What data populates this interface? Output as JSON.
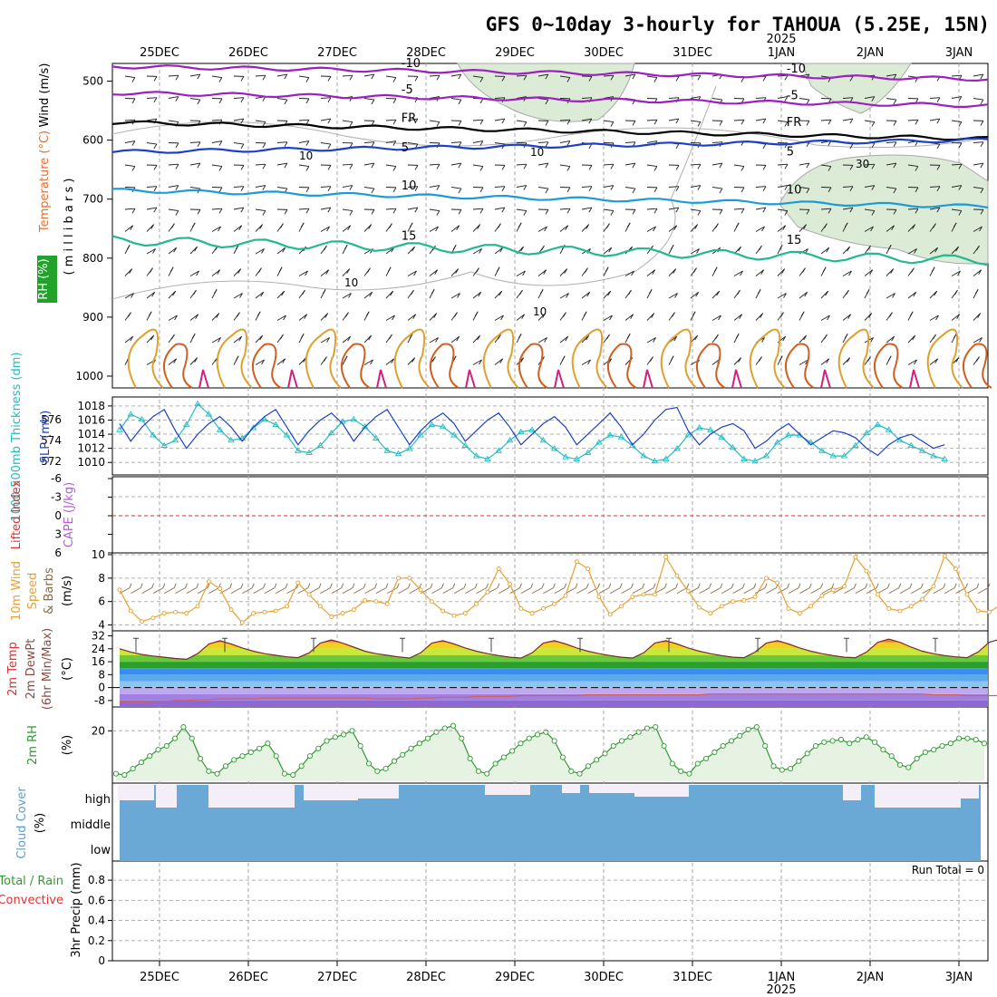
{
  "title": "GFS 0~10day 3-hourly for TAHOUA (5.25E, 15N)",
  "dates": [
    "25DEC",
    "26DEC",
    "27DEC",
    "28DEC",
    "29DEC",
    "30DEC",
    "31DEC",
    "1JAN",
    "2JAN",
    "3JAN"
  ],
  "year_label": "2025",
  "colors": {
    "frame": "#000000",
    "grid": "#b0b0b0",
    "rh": "#d9ead5",
    "slp": "#1d3fc8",
    "thick": "#22bcc4",
    "speed": "#e8a030",
    "barb": "#8a6a44",
    "rh2m": "#2f9a2f",
    "cloud": "#6aa9d6",
    "t_red": "#d93a2a",
    "fr": "#000000",
    "cool": "#b060d0",
    "li": "#e03030"
  },
  "panels": {
    "upper_air": {
      "ylabels": [
        "Wind (m/s)",
        "Temperature (°C)",
        "RH (%)",
        "( m i l l i b a r s )"
      ],
      "yticks": [
        "500",
        "600",
        "700",
        "800",
        "900",
        "1000"
      ],
      "contours": [
        {
          "label": "-10",
          "pressure": 475,
          "color": "#9a20c0"
        },
        {
          "label": "-5",
          "pressure": 520,
          "color": "#9a20c0"
        },
        {
          "label": "FR",
          "pressure": 570,
          "color": "#000000"
        },
        {
          "label": "5",
          "pressure": 620,
          "color": "#1d3fc8"
        },
        {
          "label": "10",
          "pressure": 685,
          "color": "#1d9ad8"
        },
        {
          "label": "15",
          "pressure": 770,
          "color": "#22b890"
        }
      ],
      "rh_label": "10",
      "rh_label2": "30"
    },
    "slp": {
      "ylabels": [
        "1000-500mb Thickness (dm)",
        "SLP (mb)"
      ],
      "left_ticks": [
        "576",
        "574",
        "572"
      ],
      "right_ticks": [
        "1018",
        "1016",
        "1014",
        "1012",
        "1010"
      ],
      "ylim_slp": [
        1009,
        1018.5
      ]
    },
    "cape": {
      "ylabels": [
        "Lifted Index",
        "CAPE (J/kg)"
      ],
      "left_ticks": [
        "-6",
        "-3",
        "0",
        "3",
        "6"
      ]
    },
    "wind10m": {
      "ylabels": [
        "10m Wind",
        "Speed",
        "& Barbs",
        "(m/s)"
      ],
      "yticks": [
        "10",
        "8",
        "6",
        "4"
      ],
      "ylim": [
        3.5,
        10
      ]
    },
    "temp2m": {
      "ylabels": [
        "2m Temp",
        "2m DewPt",
        "(6hr Min/Max)",
        "(°C)"
      ],
      "yticks": [
        "32",
        "24",
        "16",
        "8",
        "0",
        "-8"
      ],
      "ylim": [
        -12,
        34
      ]
    },
    "rh2m": {
      "ylabels": [
        "2m RH",
        "(%)"
      ],
      "yticks": [
        "20"
      ],
      "ylim": [
        0,
        28
      ]
    },
    "cloud": {
      "ylabels": [
        "Cloud Cover",
        "(%)"
      ],
      "levels": [
        "high",
        "middle",
        "low"
      ]
    },
    "precip": {
      "ylabels": [
        "Total / Rain",
        "Convective",
        "3hr Precip (mm)"
      ],
      "yticks": [
        "0.8",
        "0.6",
        "0.4",
        "0.2",
        "0"
      ],
      "run_total": "Run Total = 0"
    }
  },
  "chart_data": [
    {
      "type": "line",
      "title": "SLP & 1000-500mb Thickness",
      "series": [
        {
          "name": "SLP (mb)",
          "values": [
            1015.5,
            1013,
            1015,
            1016.5,
            1017.5,
            1014.5,
            1012,
            1014,
            1015.5,
            1016.5,
            1015,
            1013,
            1015,
            1016.5,
            1017.5,
            1015,
            1012.5,
            1014.5,
            1016,
            1017,
            1015.5,
            1013,
            1015,
            1016.5,
            1017.5,
            1015,
            1012.5,
            1014.5,
            1016,
            1017,
            1015.5,
            1013,
            1014.5,
            1016,
            1017,
            1015,
            1012.5,
            1014,
            1015.5,
            1016.5,
            1015,
            1012.5,
            1014,
            1015.5,
            1017,
            1015,
            1012.5,
            1014,
            1016,
            1017.5,
            1017.8,
            1014.5,
            1012.5,
            1014,
            1015,
            1015.5,
            1014.5,
            1012,
            1013,
            1014.5,
            1015.5,
            1014,
            1012.5,
            1013.5,
            1014.5,
            1014.2,
            1013.5,
            1012,
            1011,
            1012.5,
            1013.5,
            1014,
            1013,
            1012,
            1012.5
          ]
        },
        {
          "name": "1000-500mb Thickness (dm)",
          "values": [
            575,
            576.5,
            576,
            574.5,
            573.5,
            574,
            575.5,
            577.5,
            576.5,
            575,
            574,
            574.2,
            575.2,
            576,
            575.5,
            574.5,
            573,
            572.8,
            573.5,
            574.7,
            575.8,
            576,
            575.3,
            574.2,
            573,
            572.7,
            573.2,
            574.5,
            575.5,
            575.3,
            574.5,
            573.5,
            572.5,
            572.2,
            573,
            574,
            574.8,
            575,
            574,
            573.2,
            572.4,
            572.2,
            572.8,
            573.8,
            574.5,
            574.3,
            573.5,
            572.5,
            572,
            572.2,
            573.2,
            574.5,
            575.2,
            575,
            574.3,
            573.3,
            572.2,
            572,
            572.5,
            573.8,
            574.5,
            574.5,
            573.8,
            573,
            572.5,
            572.5,
            573.5,
            574.7,
            575.5,
            575,
            574,
            573.5,
            573,
            572.5,
            572.2
          ]
        }
      ]
    },
    {
      "type": "line",
      "title": "10m Wind Speed",
      "xlabel": "",
      "ylabel": "(m/s)",
      "series": [
        {
          "name": "Speed",
          "values": [
            7,
            5.2,
            4.3,
            4.6,
            5,
            5.1,
            5,
            5.6,
            7.7,
            7.1,
            5.3,
            4.2,
            5,
            5.1,
            5.2,
            5.6,
            7.6,
            6.6,
            5.6,
            4.7,
            5,
            5.3,
            6.1,
            6,
            5.8,
            8,
            8,
            7,
            6,
            5.2,
            4.8,
            5,
            5.8,
            6.8,
            8.8,
            7.5,
            5.4,
            5,
            5.4,
            5.8,
            6.5,
            9.4,
            8.8,
            6.4,
            4.9,
            5.6,
            6.4,
            6.6,
            6.6,
            9.8,
            8.2,
            6.9,
            5.5,
            5,
            5.6,
            6,
            6.1,
            6.4,
            8,
            7.6,
            5.4,
            5,
            5.6,
            6.5,
            7,
            7.3,
            9.8,
            8.6,
            6.6,
            5.4,
            5.2,
            5.6,
            6.2,
            7.3,
            9.9,
            8.8,
            6.6,
            5.2,
            5.1,
            5.7,
            6.1,
            6.5,
            8.4,
            6.6,
            4.2,
            3.8,
            4.1,
            4.6,
            5.2,
            5.4,
            5.6
          ]
        }
      ]
    },
    {
      "type": "line",
      "title": "2m Temp",
      "ylabel": "(°C)",
      "series": [
        {
          "name": "2m Temp",
          "values": [
            24,
            22,
            20.5,
            19.5,
            18.8,
            18,
            17.5,
            21,
            27,
            29,
            27,
            24.5,
            22.5,
            21,
            20,
            19,
            18.5,
            21.5,
            27.5,
            29.5,
            27.5,
            25,
            22.5,
            21,
            20,
            19,
            18.3,
            21.5,
            27.5,
            29,
            27,
            24.5,
            22.5,
            21,
            19.8,
            18.8,
            18.3,
            21.5,
            27.5,
            29,
            27,
            24.5,
            22.5,
            21,
            19.8,
            18.8,
            18.3,
            21.5,
            27.5,
            29,
            27,
            24.5,
            22.5,
            21,
            19.8,
            18.8,
            18.5,
            22,
            27.5,
            29,
            27,
            24.5,
            22.5,
            21,
            19.8,
            18.8,
            18.5,
            22,
            28,
            30,
            28,
            25,
            22.5,
            21,
            19.8,
            19,
            18.5,
            22,
            28,
            30,
            28,
            25,
            22.5,
            21,
            20,
            19,
            18
          ]
        },
        {
          "name": "2m DewPt",
          "values": [
            -9,
            -9,
            -9,
            -8.5,
            -8.5,
            -8,
            -8,
            -7.5,
            -7.5,
            -7,
            -7,
            -7,
            -7,
            -6.5,
            -6.5,
            -6.5,
            -6.5,
            -6.5,
            -6.5,
            -6.5,
            -6.5,
            -6.5,
            -6.5,
            -7,
            -7,
            -7,
            -7,
            -6.5,
            -6.5,
            -6,
            -6,
            -6,
            -5.5,
            -5.5,
            -5.5,
            -5.5,
            -5,
            -5,
            -5,
            -5,
            -5,
            -5,
            -4.5,
            -4.5,
            -4.5,
            -4.5,
            -4.5,
            -4.5,
            -4.5,
            -4.5,
            -4.5,
            -4.5,
            -4.5,
            -4,
            -4,
            -4,
            -4,
            -4,
            -4,
            -4,
            -4,
            -4,
            -4,
            -4,
            -4,
            -4,
            -4,
            -4,
            -4,
            -4,
            -4,
            -4,
            -4,
            -4.5,
            -4.5,
            -4.5,
            -5,
            -5,
            -5,
            -5,
            -5,
            -5,
            -5,
            -5.5,
            -5.5,
            -6,
            -6,
            -6.5,
            -7,
            -7.5,
            -7.5
          ]
        }
      ]
    },
    {
      "type": "line",
      "title": "2m RH",
      "ylabel": "(%)",
      "series": [
        {
          "name": "2m RH",
          "values": [
            3,
            2.5,
            5,
            7.5,
            10,
            12.5,
            14,
            17,
            21.5,
            17,
            9,
            4,
            3,
            6,
            8.5,
            10,
            11.5,
            13,
            15,
            10,
            3,
            2.5,
            6,
            10,
            13,
            16,
            17.5,
            18.5,
            20,
            14,
            7,
            4,
            5,
            8,
            10.5,
            13,
            15,
            17,
            19.5,
            21,
            22,
            17,
            9,
            4,
            3,
            7,
            9.5,
            12,
            15,
            17,
            18.5,
            19.5,
            16,
            9.5,
            4,
            3,
            6,
            8.5,
            11,
            14,
            16,
            17.5,
            19.5,
            21,
            21.5,
            14,
            7,
            4,
            3,
            7,
            9,
            11.5,
            14,
            16,
            18,
            20.5,
            21.5,
            14,
            6,
            4.5,
            5,
            8,
            11,
            14,
            15.5,
            16,
            16.5,
            15,
            16.5,
            17.5,
            15.5,
            12.5,
            10,
            6.5,
            5.5,
            9,
            11.5,
            12.5,
            14,
            15,
            17,
            17,
            16.5,
            15
          ]
        }
      ]
    },
    {
      "type": "bar",
      "title": "Cloud Cover",
      "series": [
        {
          "name": "high",
          "values": [
            100,
            78,
            78,
            100,
            100,
            78,
            100,
            100,
            100,
            78,
            78,
            100,
            78,
            78,
            100,
            100,
            100,
            100,
            100,
            100,
            100,
            100,
            100,
            100,
            100,
            100,
            100,
            100,
            100,
            100,
            100,
            100,
            100,
            100,
            100,
            100,
            100,
            100,
            100,
            100,
            100,
            100,
            100,
            100,
            100,
            100,
            100,
            100,
            100,
            100,
            100,
            100,
            100,
            100,
            100,
            100,
            100,
            100,
            100,
            100,
            100,
            100,
            100,
            100,
            100,
            100,
            100,
            100,
            100,
            100,
            100,
            100,
            100,
            100,
            100,
            100,
            100,
            100,
            100,
            100,
            100,
            100,
            100,
            100,
            100,
            100,
            100,
            100,
            100,
            100,
            100
          ]
        }
      ]
    },
    {
      "type": "bar",
      "title": "3hr Precip (mm)",
      "series": [
        {
          "name": "Total / Rain",
          "values": [
            0,
            0,
            0,
            0,
            0,
            0,
            0,
            0,
            0,
            0
          ]
        }
      ]
    }
  ]
}
